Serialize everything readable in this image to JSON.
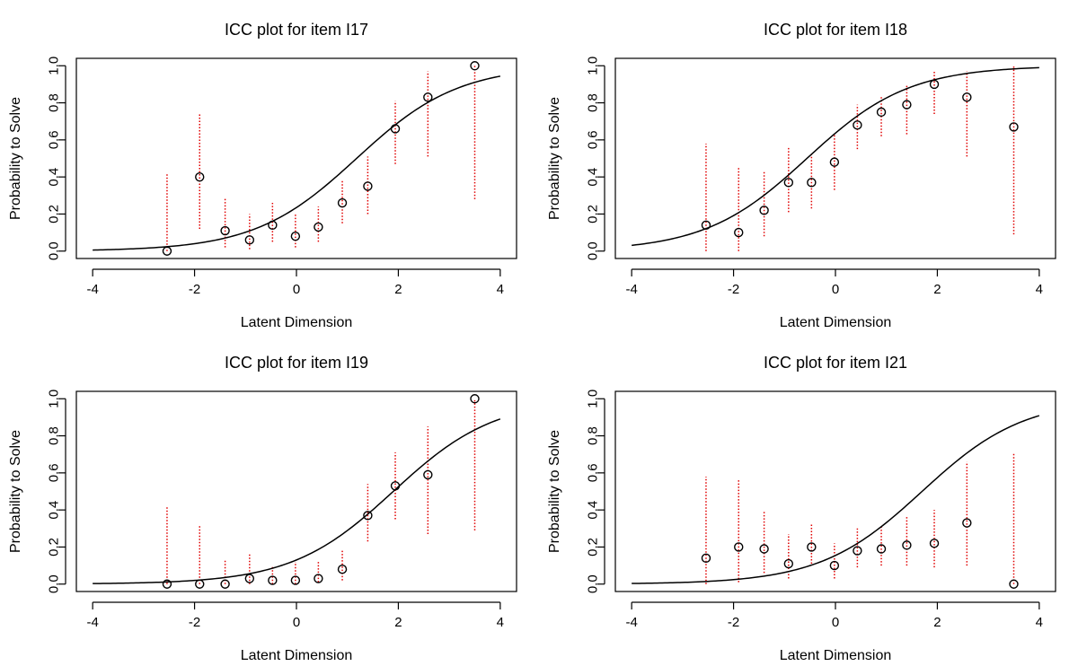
{
  "chart_data": [
    {
      "type": "scatter",
      "title": "ICC plot for item  I17",
      "xlabel": "Latent Dimension",
      "ylabel": "Probability to Solve",
      "xlim": [
        -4,
        4
      ],
      "ylim": [
        0,
        1
      ],
      "x_ticks": [
        -4,
        -2,
        0,
        2,
        4
      ],
      "y_ticks": [
        0.0,
        0.2,
        0.4,
        0.6,
        0.8,
        1.0
      ],
      "x_tick_labels": [
        "-4",
        "-2",
        "0",
        "2",
        "4"
      ],
      "y_tick_labels": [
        "0.0",
        "0.2",
        "0.4",
        "0.6",
        "0.8",
        "1.0"
      ],
      "curve": {
        "type": "logistic",
        "difficulty": 1.18,
        "domain": [
          -4,
          4
        ],
        "color": "#000000"
      },
      "points": {
        "x": [
          -2.54,
          -1.9,
          -1.4,
          -0.92,
          -0.47,
          -0.02,
          0.43,
          0.9,
          1.4,
          1.94,
          2.58,
          3.5
        ],
        "y": [
          0.0,
          0.4,
          0.11,
          0.06,
          0.14,
          0.08,
          0.13,
          0.26,
          0.35,
          0.66,
          0.83,
          1.0
        ],
        "ci_low": [
          0.0,
          0.12,
          0.02,
          0.01,
          0.05,
          0.02,
          0.05,
          0.15,
          0.2,
          0.47,
          0.51,
          0.28
        ],
        "ci_high": [
          0.42,
          0.74,
          0.29,
          0.2,
          0.26,
          0.2,
          0.24,
          0.38,
          0.51,
          0.81,
          0.97,
          1.0
        ]
      },
      "point_color": "#000000",
      "ci_color": "#e00000"
    },
    {
      "type": "scatter",
      "title": "ICC plot for item  I18",
      "xlabel": "Latent Dimension",
      "ylabel": "Probability to Solve",
      "xlim": [
        -4,
        4
      ],
      "ylim": [
        0,
        1
      ],
      "x_ticks": [
        -4,
        -2,
        0,
        2,
        4
      ],
      "y_ticks": [
        0.0,
        0.2,
        0.4,
        0.6,
        0.8,
        1.0
      ],
      "x_tick_labels": [
        "-4",
        "-2",
        "0",
        "2",
        "4"
      ],
      "y_tick_labels": [
        "0.0",
        "0.2",
        "0.4",
        "0.6",
        "0.8",
        "1.0"
      ],
      "curve": {
        "type": "logistic",
        "difficulty": -0.56,
        "domain": [
          -4,
          4
        ],
        "color": "#000000"
      },
      "points": {
        "x": [
          -2.54,
          -1.9,
          -1.4,
          -0.92,
          -0.47,
          -0.02,
          0.43,
          0.9,
          1.4,
          1.94,
          2.58,
          3.5
        ],
        "y": [
          0.14,
          0.1,
          0.22,
          0.37,
          0.37,
          0.48,
          0.68,
          0.75,
          0.79,
          0.9,
          0.83,
          0.67
        ],
        "ci_low": [
          0.0,
          0.0,
          0.08,
          0.21,
          0.23,
          0.33,
          0.55,
          0.62,
          0.63,
          0.74,
          0.51,
          0.09
        ],
        "ci_high": [
          0.58,
          0.45,
          0.43,
          0.56,
          0.52,
          0.63,
          0.79,
          0.84,
          0.9,
          0.97,
          0.97,
          1.0
        ]
      },
      "point_color": "#000000",
      "ci_color": "#e00000"
    },
    {
      "type": "scatter",
      "title": "ICC plot for item  I19",
      "xlabel": "Latent Dimension",
      "ylabel": "Probability to Solve",
      "xlim": [
        -4,
        4
      ],
      "ylim": [
        0,
        1
      ],
      "x_ticks": [
        -4,
        -2,
        0,
        2,
        4
      ],
      "y_ticks": [
        0.0,
        0.2,
        0.4,
        0.6,
        0.8,
        1.0
      ],
      "x_tick_labels": [
        "-4",
        "-2",
        "0",
        "2",
        "4"
      ],
      "y_tick_labels": [
        "0.0",
        "0.2",
        "0.4",
        "0.6",
        "0.8",
        "1.0"
      ],
      "curve": {
        "type": "logistic",
        "difficulty": 1.9,
        "domain": [
          -4,
          4
        ],
        "color": "#000000"
      },
      "points": {
        "x": [
          -2.54,
          -1.9,
          -1.4,
          -0.92,
          -0.47,
          -0.02,
          0.43,
          0.9,
          1.4,
          1.94,
          2.58,
          3.5
        ],
        "y": [
          0.0,
          0.0,
          0.0,
          0.03,
          0.02,
          0.02,
          0.03,
          0.08,
          0.37,
          0.53,
          0.59,
          1.0
        ],
        "ci_low": [
          0.0,
          0.0,
          0.0,
          0.0,
          0.0,
          0.0,
          0.01,
          0.02,
          0.23,
          0.35,
          0.27,
          0.29
        ],
        "ci_high": [
          0.42,
          0.32,
          0.13,
          0.16,
          0.1,
          0.12,
          0.12,
          0.18,
          0.54,
          0.71,
          0.85,
          1.0
        ]
      },
      "point_color": "#000000",
      "ci_color": "#e00000"
    },
    {
      "type": "scatter",
      "title": "ICC plot for item  I21",
      "xlabel": "Latent Dimension",
      "ylabel": "Probability to Solve",
      "xlim": [
        -4,
        4
      ],
      "ylim": [
        0,
        1
      ],
      "x_ticks": [
        -4,
        -2,
        0,
        2,
        4
      ],
      "y_ticks": [
        0.0,
        0.2,
        0.4,
        0.6,
        0.8,
        1.0
      ],
      "x_tick_labels": [
        "-4",
        "-2",
        "0",
        "2",
        "4"
      ],
      "y_tick_labels": [
        "0.0",
        "0.2",
        "0.4",
        "0.6",
        "0.8",
        "1.0"
      ],
      "curve": {
        "type": "logistic",
        "difficulty": 1.7,
        "domain": [
          -4,
          4
        ],
        "color": "#000000"
      },
      "points": {
        "x": [
          -2.54,
          -1.9,
          -1.4,
          -0.92,
          -0.47,
          -0.02,
          0.43,
          0.9,
          1.4,
          1.94,
          2.58,
          3.5
        ],
        "y": [
          0.14,
          0.2,
          0.19,
          0.11,
          0.2,
          0.1,
          0.18,
          0.19,
          0.21,
          0.22,
          0.33,
          0.0
        ],
        "ci_low": [
          0.0,
          0.01,
          0.06,
          0.03,
          0.11,
          0.03,
          0.09,
          0.1,
          0.1,
          0.09,
          0.1,
          0.0
        ],
        "ci_high": [
          0.58,
          0.56,
          0.39,
          0.27,
          0.33,
          0.22,
          0.3,
          0.31,
          0.37,
          0.4,
          0.66,
          0.71
        ]
      },
      "point_color": "#000000",
      "ci_color": "#e00000"
    }
  ]
}
